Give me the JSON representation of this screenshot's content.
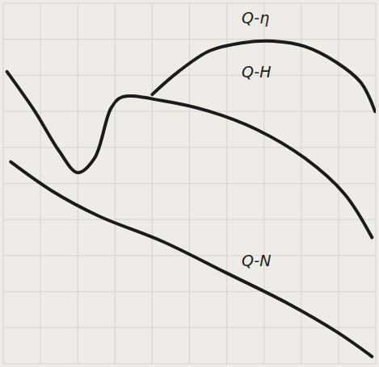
{
  "chart_data": {
    "type": "line",
    "series": [
      {
        "name": "Q-η",
        "color": "#1b1b1b",
        "x": [
          40,
          47,
          55.4,
          64,
          72.5,
          81,
          89.6,
          96,
          99.8
        ],
        "values": [
          74.7,
          81,
          86.8,
          89,
          89.5,
          88,
          83.5,
          78,
          70
        ]
      },
      {
        "name": "Q-H",
        "color": "#1b1b1b",
        "x": [
          1,
          8.5,
          15,
          20,
          24.5,
          29,
          32,
          42.6,
          55.4,
          68,
          81,
          91.7,
          99
        ],
        "values": [
          81,
          70,
          59,
          53,
          57,
          71,
          74,
          73,
          70,
          65,
          57,
          47,
          35
        ]
      },
      {
        "name": "Q-N",
        "color": "#1b1b1b",
        "x": [
          2,
          13,
          25.6,
          42.6,
          59.7,
          76.8,
          89.6,
          99
        ],
        "values": [
          56,
          48,
          41,
          34,
          25.3,
          16.5,
          8.8,
          2
        ]
      }
    ],
    "xlim": [
      0,
      100
    ],
    "ylim": [
      0,
      100
    ],
    "xticks": [
      0,
      10,
      20,
      30,
      40,
      50,
      60,
      70,
      80,
      90,
      100
    ],
    "yticks": [
      0,
      10,
      20,
      30,
      40,
      50,
      60,
      70,
      80,
      90,
      100
    ],
    "grid": true,
    "tick_labels": false
  }
}
